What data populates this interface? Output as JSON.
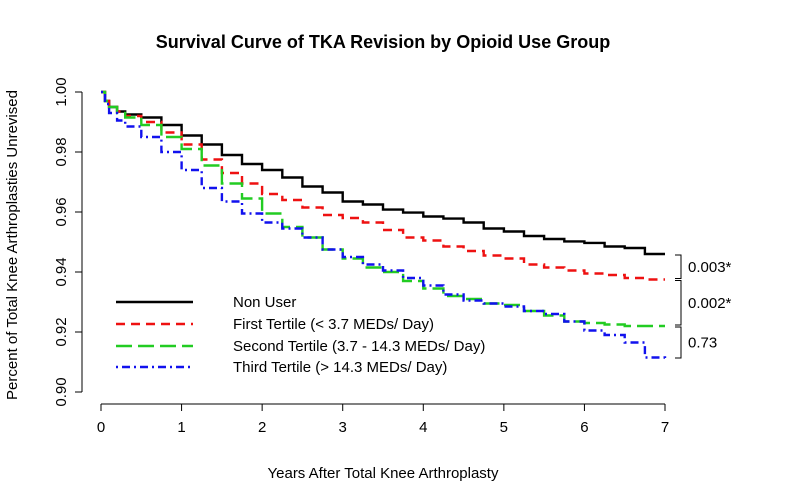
{
  "chart_data": {
    "type": "line",
    "title": "Survival Curve of TKA Revision by Opioid Use Group",
    "xlabel": "Years After Total Knee Arthroplasty",
    "ylabel": "Percent of Total Knee Arthroplasties Unrevised",
    "xlim": [
      0,
      7
    ],
    "ylim": [
      0.9,
      1.0
    ],
    "x_ticks": [
      0,
      1,
      2,
      3,
      4,
      5,
      6,
      7
    ],
    "x_tick_labels": [
      "0",
      "1",
      "2",
      "3",
      "4",
      "5",
      "6",
      "7"
    ],
    "y_ticks": [
      0.9,
      0.92,
      0.94,
      0.96,
      0.98,
      1.0
    ],
    "y_tick_labels": [
      "0.90",
      "0.92",
      "0.94",
      "0.96",
      "0.98",
      "1.00"
    ],
    "grid": false,
    "legend_position": "bottom-left",
    "series": [
      {
        "name": "Non User",
        "color": "#000000",
        "dash": "solid",
        "x": [
          0,
          0.05,
          0.1,
          0.2,
          0.3,
          0.5,
          0.75,
          1.0,
          1.25,
          1.5,
          1.75,
          2.0,
          2.25,
          2.5,
          2.75,
          3.0,
          3.25,
          3.5,
          3.75,
          4.0,
          4.25,
          4.5,
          4.75,
          5.0,
          5.25,
          5.5,
          5.75,
          6.0,
          6.25,
          6.5,
          6.75,
          7.0
        ],
        "y": [
          1.0,
          0.997,
          0.995,
          0.9935,
          0.9925,
          0.9915,
          0.989,
          0.9855,
          0.9825,
          0.979,
          0.976,
          0.974,
          0.9715,
          0.9685,
          0.9665,
          0.9635,
          0.9625,
          0.9608,
          0.9598,
          0.9585,
          0.9578,
          0.9565,
          0.9545,
          0.9535,
          0.952,
          0.951,
          0.9502,
          0.9497,
          0.9485,
          0.948,
          0.946,
          0.946
        ]
      },
      {
        "name": "First Tertile (< 3.7 MEDs/ Day)",
        "color": "#ee1111",
        "dash": "dashed",
        "x": [
          0,
          0.05,
          0.1,
          0.2,
          0.3,
          0.5,
          0.75,
          1.0,
          1.25,
          1.5,
          1.75,
          2.0,
          2.25,
          2.5,
          2.75,
          3.0,
          3.25,
          3.5,
          3.75,
          4.0,
          4.25,
          4.5,
          4.75,
          5.0,
          5.25,
          5.5,
          5.75,
          6.0,
          6.25,
          6.5,
          6.75,
          7.0
        ],
        "y": [
          1.0,
          0.997,
          0.995,
          0.9935,
          0.992,
          0.99,
          0.9865,
          0.9825,
          0.9775,
          0.973,
          0.9695,
          0.966,
          0.964,
          0.9615,
          0.959,
          0.958,
          0.9565,
          0.954,
          0.9515,
          0.9505,
          0.9485,
          0.947,
          0.9455,
          0.9445,
          0.9425,
          0.9415,
          0.9405,
          0.9395,
          0.939,
          0.938,
          0.9375,
          0.9375
        ]
      },
      {
        "name": "Second Tertile (3.7 - 14.3 MEDs/ Day)",
        "color": "#22cc22",
        "dash": "longdash",
        "x": [
          0,
          0.05,
          0.1,
          0.2,
          0.3,
          0.5,
          0.75,
          1.0,
          1.25,
          1.5,
          1.75,
          2.0,
          2.25,
          2.5,
          2.75,
          3.0,
          3.25,
          3.5,
          3.75,
          4.0,
          4.25,
          4.5,
          4.75,
          5.0,
          5.25,
          5.5,
          5.75,
          6.0,
          6.25,
          6.5,
          6.75,
          7.0
        ],
        "y": [
          1.0,
          0.997,
          0.995,
          0.993,
          0.9915,
          0.989,
          0.985,
          0.981,
          0.9755,
          0.9695,
          0.9645,
          0.9595,
          0.955,
          0.9515,
          0.9475,
          0.9445,
          0.9415,
          0.94,
          0.937,
          0.9345,
          0.932,
          0.931,
          0.9295,
          0.929,
          0.927,
          0.9255,
          0.9235,
          0.923,
          0.9225,
          0.922,
          0.922,
          0.922
        ]
      },
      {
        "name": "Third Tertile (> 14.3 MEDs/ Day)",
        "color": "#1111ee",
        "dash": "dotdash",
        "x": [
          0,
          0.05,
          0.1,
          0.2,
          0.3,
          0.5,
          0.75,
          1.0,
          1.25,
          1.5,
          1.75,
          2.0,
          2.25,
          2.5,
          2.75,
          3.0,
          3.25,
          3.5,
          3.75,
          4.0,
          4.25,
          4.5,
          4.75,
          5.0,
          5.25,
          5.5,
          5.75,
          6.0,
          6.25,
          6.5,
          6.75,
          7.0
        ],
        "y": [
          1.0,
          0.996,
          0.993,
          0.9905,
          0.9885,
          0.985,
          0.98,
          0.974,
          0.968,
          0.9635,
          0.9595,
          0.9565,
          0.9545,
          0.9515,
          0.9475,
          0.945,
          0.9425,
          0.9405,
          0.938,
          0.9355,
          0.9325,
          0.9305,
          0.9295,
          0.9285,
          0.927,
          0.926,
          0.9235,
          0.9205,
          0.919,
          0.9165,
          0.9115,
          0.911
        ]
      }
    ],
    "annotations": [
      {
        "label": "0.003*",
        "y_top": 0.946,
        "y_bottom": 0.9375
      },
      {
        "label": "0.002*",
        "y_top": 0.9375,
        "y_bottom": 0.922
      },
      {
        "label": "0.73",
        "y_top": 0.922,
        "y_bottom": 0.911
      }
    ]
  }
}
